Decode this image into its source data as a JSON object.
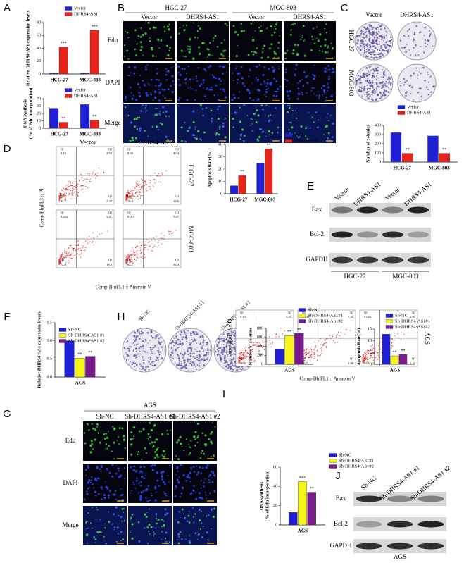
{
  "chart_data": [
    {
      "type": "bar",
      "y_label": "Relative DHRS4-AS1 expression levels",
      "categories": [
        "HCG-27",
        "MGC-803"
      ],
      "series": [
        {
          "name": "Vector",
          "color": "#1f1fd6",
          "values": [
            1,
            1
          ]
        },
        {
          "name": "DHRS4-AS1",
          "color": "#e8231c",
          "values": [
            42,
            68
          ],
          "significance": [
            "***",
            "***"
          ]
        }
      ],
      "ylim": [
        0,
        80
      ],
      "yticks": [
        0,
        20,
        40,
        60,
        80
      ],
      "legend": "top-right"
    },
    {
      "type": "bar",
      "y_label": "DNA synthesis\n( % of Edu incorporation)",
      "categories": [
        "HCG-27",
        "MGC-803"
      ],
      "series": [
        {
          "name": "Vector",
          "color": "#1f1fd6",
          "values": [
            27,
            32
          ]
        },
        {
          "name": "DHRS4-AS1",
          "color": "#e8231c",
          "values": [
            8,
            11
          ],
          "significance": [
            "**",
            "**"
          ]
        }
      ],
      "ylim": [
        0,
        40
      ],
      "yticks": [
        0,
        10,
        20,
        30,
        40
      ],
      "legend": "top-right"
    },
    {
      "type": "bar",
      "y_label": "Number of colonies",
      "categories": [
        "HCG-27",
        "MGC-803"
      ],
      "series": [
        {
          "name": "Vector",
          "color": "#1f1fd6",
          "values": [
            320,
            285
          ]
        },
        {
          "name": "DHRS4-AS1",
          "color": "#e8231c",
          "values": [
            95,
            95
          ],
          "significance": [
            "**",
            "**"
          ]
        }
      ],
      "ylim": [
        0,
        400
      ],
      "yticks": [
        0,
        100,
        200,
        300,
        400
      ],
      "legend": "top"
    },
    {
      "type": "bar",
      "y_label": "Apoptosis Rate(%)",
      "categories": [
        "HCG-27",
        "MGC-803"
      ],
      "series": [
        {
          "name": "Vector",
          "color": "#1f1fd6",
          "values": [
            6.5,
            25
          ]
        },
        {
          "name": "DHRS4-AS1",
          "color": "#e8231c",
          "values": [
            15,
            36.5
          ],
          "significance": [
            "**",
            "**"
          ]
        }
      ],
      "ylim": [
        0,
        40
      ],
      "yticks": [
        0,
        10,
        20,
        30,
        40
      ],
      "legend": "right"
    },
    {
      "type": "bar",
      "y_label": "Relative DHRS4-AS1 expression levers",
      "categories": [
        "AGS"
      ],
      "series": [
        {
          "name": "Sh-NC",
          "color": "#1f1fd6",
          "values": [
            1.0
          ]
        },
        {
          "name": "Sh-DHRS4-AS1 #1",
          "color": "#f5f51a",
          "values": [
            0.52
          ],
          "significance": [
            "**"
          ]
        },
        {
          "name": "Sh-DHRS4-AS1 #2",
          "color": "#7a1a8c",
          "values": [
            0.57
          ],
          "significance": [
            "**"
          ]
        }
      ],
      "ylim": [
        0,
        1.5
      ],
      "yticks": [
        {
          "value": 0,
          "label": "0.0"
        },
        0.5,
        {
          "value": 1,
          "label": "1.0"
        },
        1.5
      ],
      "legend": "top-right"
    },
    {
      "type": "bar",
      "y_label": "Number of colonies",
      "categories": [
        "AGS"
      ],
      "series": [
        {
          "name": "Sh-NC",
          "color": "#1f1fd6",
          "values": [
            330
          ]
        },
        {
          "name": "Sh-DHRS4-AS1#1",
          "color": "#f5f51a",
          "values": [
            640
          ],
          "significance": [
            "**"
          ]
        },
        {
          "name": "Sh-DHRS4-AS1#2",
          "color": "#7a1a8c",
          "values": [
            690
          ],
          "significance": [
            "**"
          ]
        }
      ],
      "ylim": [
        0,
        800
      ],
      "yticks": [
        0,
        200,
        400,
        600,
        800
      ],
      "legend": "top"
    },
    {
      "type": "bar",
      "y_label": "Apoptosis Rate(%)",
      "categories": [
        "AGS"
      ],
      "series": [
        {
          "name": "Sh-NC",
          "color": "#1f1fd6",
          "values": [
            12.8
          ]
        },
        {
          "name": "Sh-DHRS4-AS1#1",
          "color": "#f5f51a",
          "values": [
            3.6
          ],
          "significance": [
            "**"
          ]
        },
        {
          "name": "Sh-DHRS4-AS1#2",
          "color": "#7a1a8c",
          "values": [
            4.2
          ],
          "significance": [
            "**"
          ]
        }
      ],
      "ylim": [
        0,
        15
      ],
      "yticks": [
        0,
        5,
        10,
        15
      ],
      "legend": "top-right"
    },
    {
      "type": "bar",
      "y_label": "DNA synthesis\n( % of Edu incorporation)",
      "categories": [
        "AGS"
      ],
      "series": [
        {
          "name": "Sh-NC",
          "color": "#1f1fd6",
          "values": [
            13
          ]
        },
        {
          "name": "Sh-DHRS4-AS1#1",
          "color": "#f5f51a",
          "values": [
            45
          ],
          "significance": [
            "***"
          ]
        },
        {
          "name": "Sh-DHRS4-AS1#2",
          "color": "#7a1a8c",
          "values": [
            34
          ],
          "significance": [
            "**"
          ]
        }
      ],
      "ylim": [
        0,
        60
      ],
      "yticks": [
        0,
        20,
        40,
        60
      ],
      "legend": "top-right"
    }
  ],
  "panels": {
    "letters": [
      "A",
      "B",
      "C",
      "D",
      "E",
      "F",
      "G",
      "H",
      "I",
      "J"
    ],
    "B": {
      "groups": [
        "HGC-27",
        "MGC-803"
      ],
      "columns": [
        "Vector",
        "DHRS4-AS1",
        "Vector",
        "DHRS4-AS1"
      ],
      "rows": [
        "Edu",
        "DAPI",
        "Merge"
      ]
    },
    "C": {
      "columns": [
        "Vector",
        "DHRS4-AS1"
      ],
      "rows": [
        "HGC-27",
        "MGC-803"
      ]
    },
    "D": {
      "columns": [
        "Vector",
        "DHRS4-AS1"
      ],
      "rows": [
        "HGC-27",
        "MGC-803"
      ],
      "x_label": "Comp-BluFL1 :: Annexin V",
      "y_label": "Comp-BluFL3 :: PI",
      "quadrant_names": [
        "Q1",
        "Q2",
        "Q3",
        "Q4"
      ],
      "quadrants": [
        [
          "0.13",
          "2.92",
          "3.29",
          "93.7"
        ],
        [
          "0.38",
          "4.04",
          "19.6",
          "76.0"
        ],
        [
          "0.052",
          "5.87",
          "18.3",
          "74.8"
        ],
        [
          "0.014",
          "5.47",
          "32.4",
          "62.1"
        ]
      ]
    },
    "E": {
      "lanes": [
        "Vector",
        "DHRS4-AS1",
        "Vector",
        "DHRS4-AS1"
      ],
      "proteins": [
        "Bax",
        "Bcl-2",
        "GAPDH"
      ],
      "groups": [
        "HGC-27",
        "MGC-803"
      ]
    },
    "G": {
      "group": "AGS",
      "columns": [
        "Sh-NC",
        "Sh-DHRS4-AS1 #1",
        "Sh-DHRS4-AS1 #2"
      ],
      "rows": [
        "Edu",
        "DAPI",
        "Merge"
      ]
    },
    "H": {
      "plates": [
        "Sh-NC",
        "Sh-DHRS4-AS1 #1",
        "Sh-DHRS4-AS1 #2"
      ]
    },
    "I": {
      "x_label": "Comp-BluFL1 :: Annexin V",
      "y_label": "Comp-BluFL3 :: PI",
      "group": "AGS",
      "quadrant_names": [
        "Q1",
        "Q2",
        "Q3",
        "Q4"
      ],
      "quadrants": [
        [
          "0.13",
          "4.25",
          "5.02",
          "90.6"
        ],
        [
          "0.049",
          "7.32",
          "1.98",
          "90.7"
        ],
        [
          "0.020",
          "2.03",
          "2.42",
          "95.5"
        ]
      ]
    },
    "J": {
      "lanes": [
        "Sh-NC",
        "Sh-DHRS4-AS1 #1",
        "Sh-DHRS4-AS1 #2"
      ],
      "proteins": [
        "Bax",
        "Bcl-2",
        "GAPDH"
      ],
      "group": "AGS"
    }
  }
}
